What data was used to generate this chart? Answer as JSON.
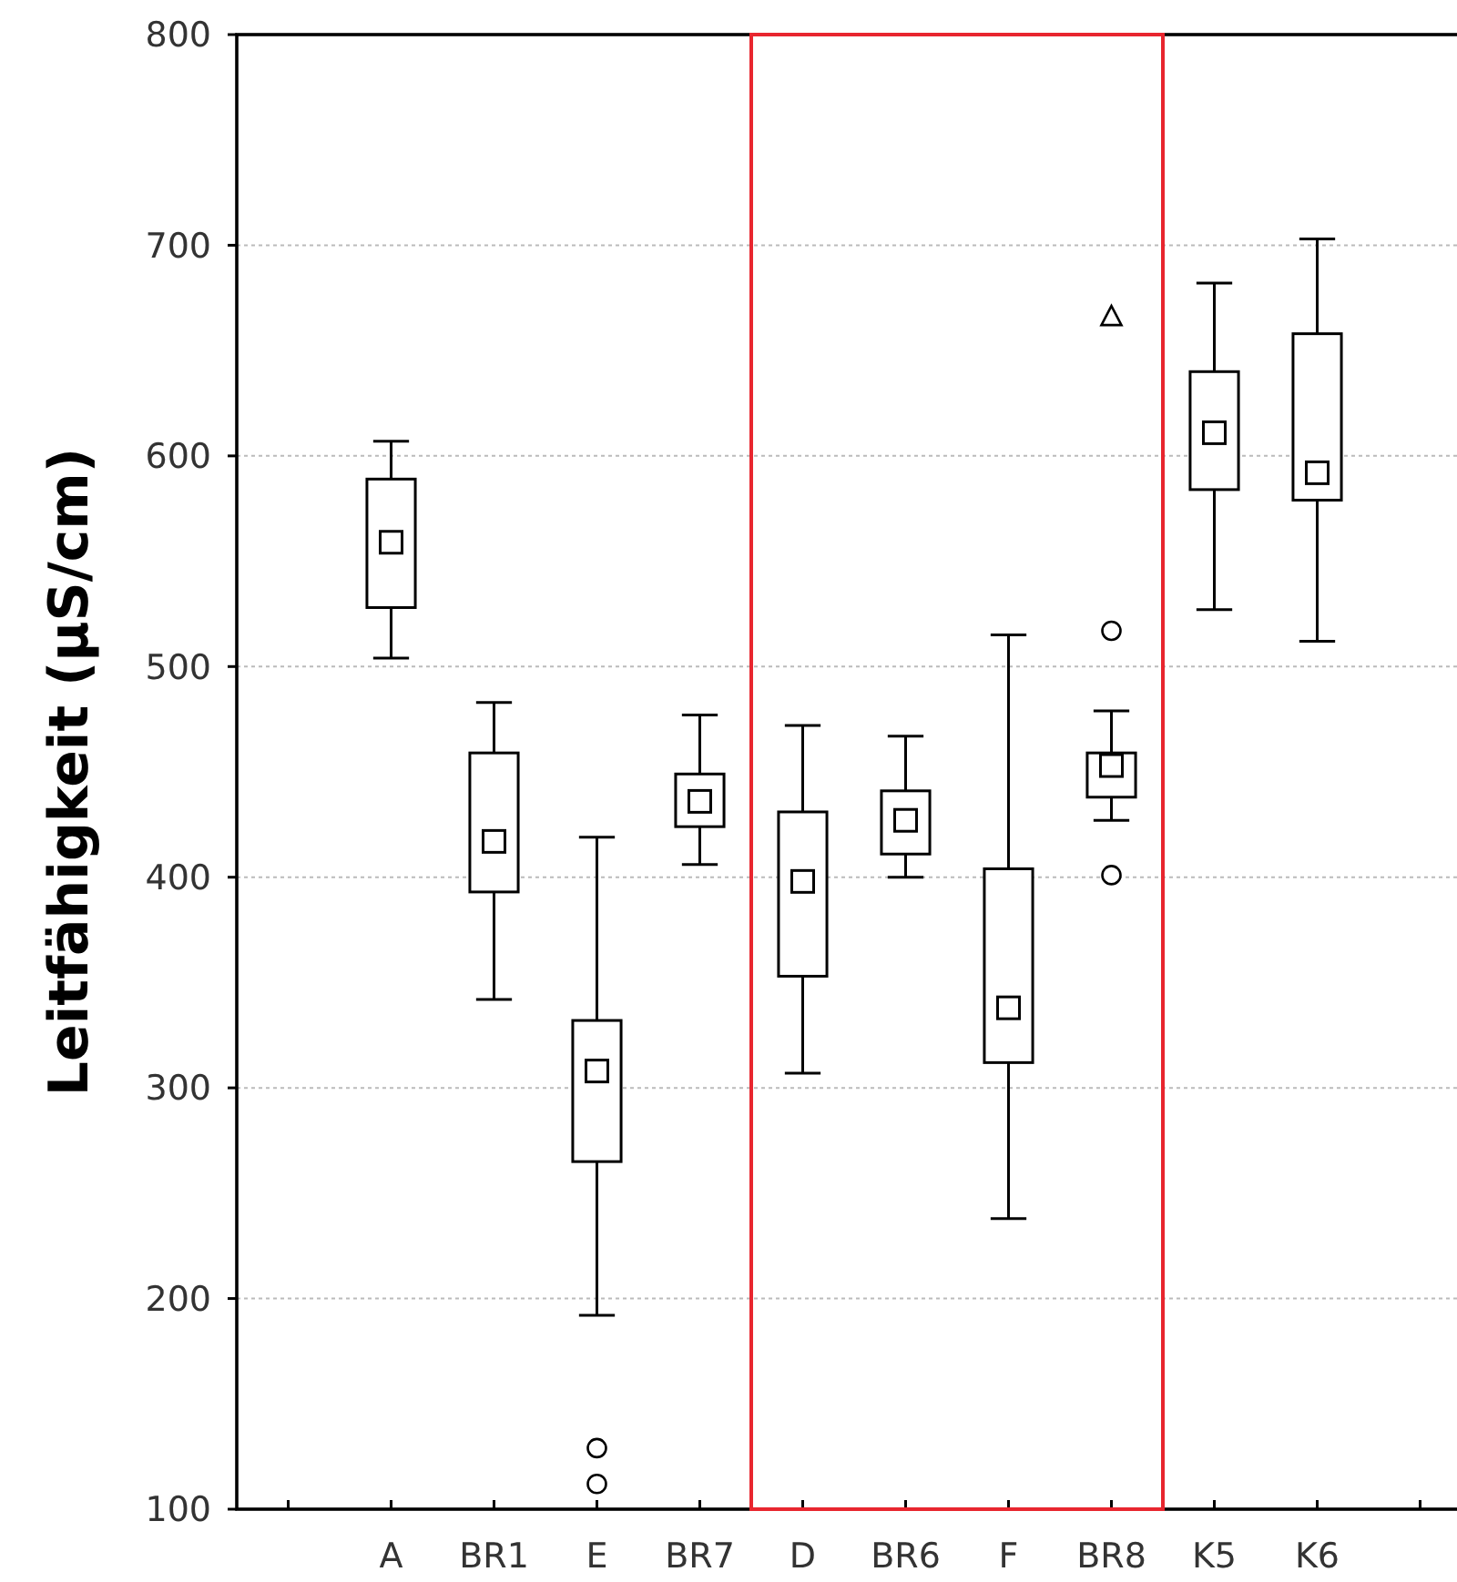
{
  "chart_data": {
    "type": "box",
    "ylabel": "Leitfähigkeit (µS/cm)",
    "categories": [
      null,
      "A",
      "BR1",
      "E",
      "BR7",
      "D",
      "BR6",
      "F",
      "BR8",
      "K5",
      "K6",
      null
    ],
    "boxes": [
      null,
      {
        "low": 504,
        "q1": 528,
        "median": 559,
        "q3": 589,
        "high": 607
      },
      {
        "low": 342,
        "q1": 393,
        "median": 417,
        "q3": 459,
        "high": 483
      },
      {
        "low": 192,
        "q1": 265,
        "median": 308,
        "q3": 332,
        "high": 419,
        "outliers": [
          129,
          112
        ]
      },
      {
        "low": 406,
        "q1": 424,
        "median": 436,
        "q3": 449,
        "high": 477
      },
      {
        "low": 307,
        "q1": 353,
        "median": 398,
        "q3": 431,
        "high": 472
      },
      {
        "low": 400,
        "q1": 411,
        "median": 427,
        "q3": 441,
        "high": 467
      },
      {
        "low": 238,
        "q1": 312,
        "median": 338,
        "q3": 404,
        "high": 515
      },
      {
        "low": 427,
        "q1": 438,
        "median": 453,
        "q3": 459,
        "high": 479,
        "outliers": [
          517,
          401
        ]
      },
      {
        "low": 527,
        "q1": 584,
        "median": 611,
        "q3": 640,
        "high": 682
      },
      {
        "low": 512,
        "q1": 579,
        "median": 592,
        "q3": 658,
        "high": 703
      },
      null
    ],
    "series": [
      {
        "type": "scatter",
        "x": [
          "BR8"
        ],
        "values": [
          666
        ],
        "marker": "triangle",
        "color": "#000000"
      }
    ],
    "ylim": [
      100,
      800
    ],
    "yticks": [
      100,
      200,
      300,
      400,
      500,
      600,
      700,
      800
    ],
    "grid": "y"
  }
}
